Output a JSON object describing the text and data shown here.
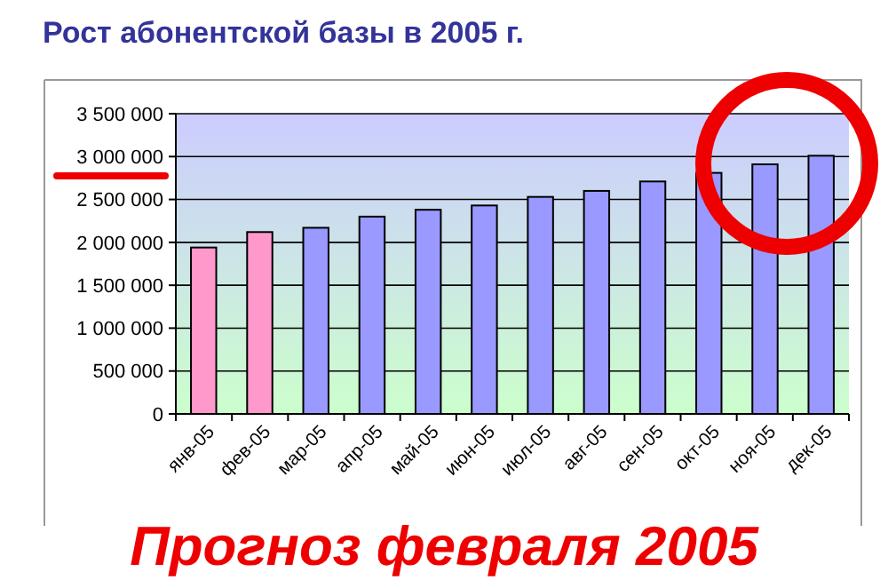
{
  "chart_data": {
    "type": "bar",
    "title": "Рост абонентской базы в 2005 г.",
    "categories": [
      "янв-05",
      "фев-05",
      "мар-05",
      "апр-05",
      "май-05",
      "июн-05",
      "июл-05",
      "авг-05",
      "сен-05",
      "окт-05",
      "ноя-05",
      "дек-05"
    ],
    "values": [
      1940000,
      2120000,
      2170000,
      2300000,
      2380000,
      2430000,
      2530000,
      2600000,
      2710000,
      2810000,
      2910000,
      3010000
    ],
    "colors": [
      "#ff99cc",
      "#ff99cc",
      "#9999ff",
      "#9999ff",
      "#9999ff",
      "#9999ff",
      "#9999ff",
      "#9999ff",
      "#9999ff",
      "#9999ff",
      "#9999ff",
      "#9999ff"
    ],
    "ylim": [
      0,
      3500000
    ],
    "yticks": [
      {
        "value": 0,
        "label": "0"
      },
      {
        "value": 500000,
        "label": "500 000"
      },
      {
        "value": 1000000,
        "label": "1 000 000"
      },
      {
        "value": 1500000,
        "label": "1 500 000"
      },
      {
        "value": 2000000,
        "label": "2 000 000"
      },
      {
        "value": 2500000,
        "label": "2 500 000"
      },
      {
        "value": 3000000,
        "label": "3 000 000"
      },
      {
        "value": 3500000,
        "label": "3 500 000"
      }
    ],
    "grid": "y",
    "annotations": [
      "Прогноз февраля 2005"
    ]
  }
}
